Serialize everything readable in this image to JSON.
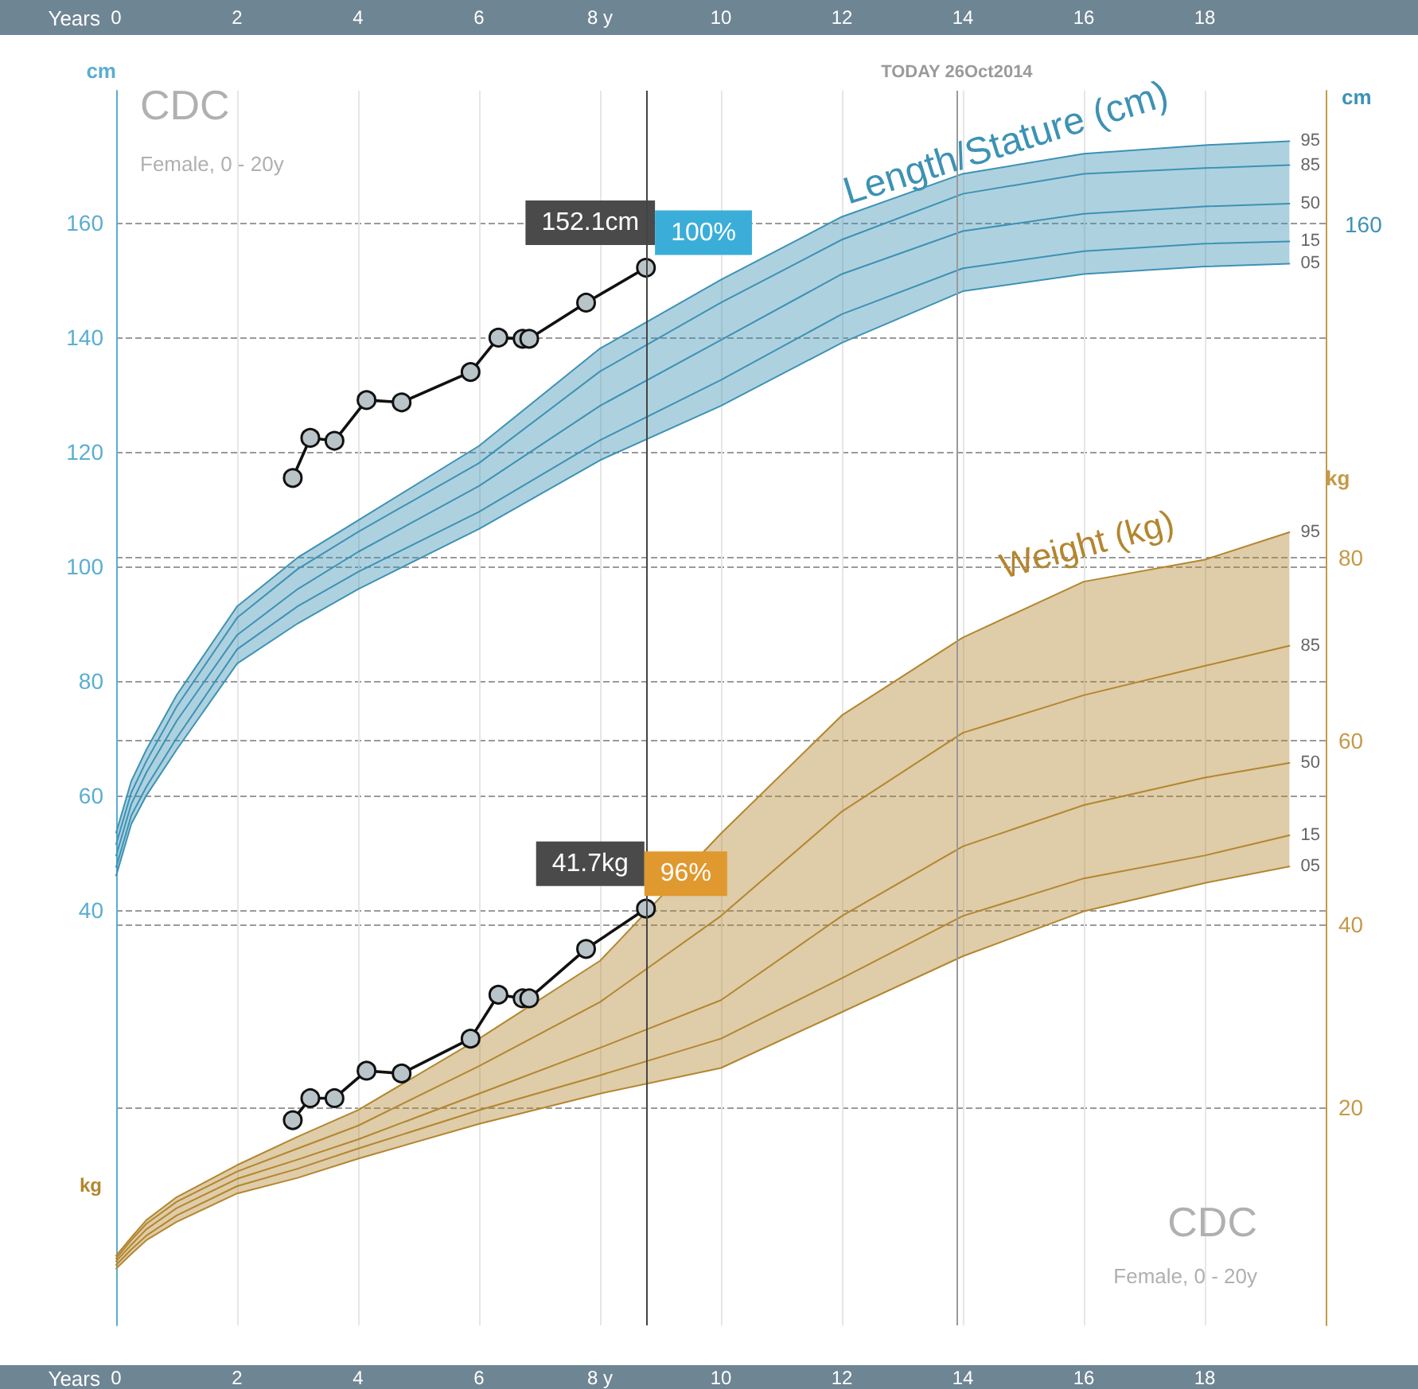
{
  "chart_data": {
    "type": "line",
    "xlabel": "Years",
    "x2label": "Years",
    "ylabel": "cm",
    "y2label": "kg",
    "xlim": [
      0,
      20
    ],
    "xticks": [
      0,
      2,
      4,
      6,
      {
        "value": 8,
        "label": "8 y"
      },
      10,
      12,
      14,
      16,
      18
    ],
    "x2lim": [
      0,
      20
    ],
    "x2ticks": [
      0,
      2,
      4,
      6,
      {
        "value": 8,
        "label": "8 y"
      },
      10,
      12,
      14,
      16,
      18
    ],
    "ylim": [
      -32.5,
      183
    ],
    "yticks": [
      40,
      60,
      80,
      100,
      120,
      140,
      160
    ],
    "y2lim": [
      -3.8,
      131
    ],
    "y2ticks": [
      20,
      40,
      60,
      80
    ],
    "grid": true,
    "line_style": "solid",
    "series": [
      {
        "name": "95",
        "color": "#3d92b4",
        "marker": "none",
        "x": [
          0,
          0.25,
          0.5,
          1,
          2,
          3,
          4,
          6,
          8,
          10,
          12,
          14,
          16,
          18,
          19.4
        ],
        "values": [
          53.5,
          62.5,
          68,
          77.5,
          93,
          101.5,
          108,
          121,
          138,
          150,
          161,
          168.5,
          172,
          173.5,
          174.2
        ]
      },
      {
        "name": "85",
        "color": "#3d92b4",
        "marker": "none",
        "x": [
          0,
          0.25,
          0.5,
          1,
          2,
          3,
          4,
          6,
          8,
          10,
          12,
          14,
          16,
          18,
          19.4
        ],
        "values": [
          51.5,
          60.5,
          66,
          75.5,
          91,
          99.5,
          106,
          118,
          134,
          146,
          157,
          165,
          168.5,
          169.5,
          170
        ]
      },
      {
        "name": "50",
        "color": "#3d92b4",
        "marker": "none",
        "x": [
          0,
          0.25,
          0.5,
          1,
          2,
          3,
          4,
          6,
          8,
          10,
          12,
          14,
          16,
          18,
          19.4
        ],
        "values": [
          49.5,
          58.5,
          64,
          73,
          88,
          96,
          102.5,
          114,
          128,
          139.5,
          151,
          158.5,
          161.5,
          162.8,
          163.3
        ],
        "lower": [
          46,
          55,
          60,
          68,
          83,
          90,
          96,
          106.5,
          118.5,
          128,
          139,
          148,
          151,
          152.3,
          152.8
        ],
        "upper": [
          53.5,
          62.5,
          68,
          77.5,
          93,
          101.5,
          108,
          121,
          138,
          150,
          161,
          168.5,
          172,
          173.5,
          174.2
        ]
      },
      {
        "name": "15",
        "color": "#3d92b4",
        "marker": "none",
        "x": [
          0,
          0.25,
          0.5,
          1,
          2,
          3,
          4,
          6,
          8,
          10,
          12,
          14,
          16,
          18,
          19.4
        ],
        "values": [
          47.5,
          56.5,
          61.5,
          70,
          85.5,
          93,
          99,
          109.5,
          122,
          132.5,
          144,
          152,
          155,
          156.3,
          156.7
        ]
      },
      {
        "name": "05",
        "color": "#3d92b4",
        "marker": "none",
        "x": [
          0,
          0.25,
          0.5,
          1,
          2,
          3,
          4,
          6,
          8,
          10,
          12,
          14,
          16,
          18,
          19.4
        ],
        "values": [
          46,
          55,
          60,
          68,
          83,
          90,
          96,
          106.5,
          118.5,
          128,
          139,
          148,
          151,
          152.3,
          152.8
        ]
      },
      {
        "name": "95",
        "color": "#b3862f",
        "marker": "none",
        "axis": "y2",
        "x": [
          0,
          0.25,
          0.5,
          1,
          2,
          3,
          4,
          6,
          8,
          10,
          12,
          14,
          16,
          18,
          19.4
        ],
        "values": [
          3.8,
          5.8,
          7.7,
          10.2,
          13.7,
          16.8,
          19.7,
          27.5,
          36,
          49.9,
          62.8,
          71.3,
          77.4,
          79.8,
          82.8
        ]
      },
      {
        "name": "85",
        "color": "#b3862f",
        "marker": "none",
        "axis": "y2",
        "x": [
          0,
          0.25,
          0.5,
          1,
          2,
          3,
          4,
          6,
          8,
          10,
          12,
          14,
          16,
          18,
          19.4
        ],
        "values": [
          3.5,
          5.5,
          7.3,
          9.7,
          13,
          15.5,
          18,
          24.5,
          31.5,
          40.9,
          52.3,
          60.9,
          65,
          68.2,
          70.4
        ]
      },
      {
        "name": "50",
        "color": "#b3862f",
        "marker": "none",
        "axis": "y2",
        "x": [
          0,
          0.25,
          0.5,
          1,
          2,
          3,
          4,
          6,
          8,
          10,
          12,
          14,
          16,
          18,
          19.4
        ],
        "values": [
          3.2,
          5,
          6.7,
          9,
          12.2,
          14.3,
          16.5,
          21.5,
          26.5,
          31.7,
          40.9,
          48.5,
          53,
          56,
          57.6
        ],
        "lower": [
          2.4,
          4,
          5.5,
          7.5,
          10.6,
          12.3,
          14.4,
          18.2,
          21.5,
          24.3,
          30.4,
          36.5,
          41.4,
          44.5,
          46.3
        ],
        "upper": [
          3.8,
          5.8,
          7.7,
          10.2,
          13.7,
          16.8,
          19.7,
          27.5,
          36,
          49.9,
          62.8,
          71.3,
          77.4,
          79.8,
          82.8
        ]
      },
      {
        "name": "15",
        "color": "#b3862f",
        "marker": "none",
        "axis": "y2",
        "x": [
          0,
          0.25,
          0.5,
          1,
          2,
          3,
          4,
          6,
          8,
          10,
          12,
          14,
          16,
          18,
          19.4
        ],
        "values": [
          2.8,
          4.5,
          6,
          8.2,
          11.4,
          13.3,
          15.5,
          19.7,
          23.5,
          27.5,
          34.1,
          40.9,
          45,
          47.5,
          49.7
        ]
      },
      {
        "name": "05",
        "color": "#b3862f",
        "marker": "none",
        "axis": "y2",
        "x": [
          0,
          0.25,
          0.5,
          1,
          2,
          3,
          4,
          6,
          8,
          10,
          12,
          14,
          16,
          18,
          19.4
        ],
        "values": [
          2.4,
          4,
          5.5,
          7.5,
          10.6,
          12.3,
          14.4,
          18.2,
          21.5,
          24.3,
          30.4,
          36.5,
          41.4,
          44.5,
          46.3
        ]
      },
      {
        "color": "#111111",
        "marker": "circle",
        "x": [
          2.92,
          3.21,
          3.61,
          4.14,
          4.72,
          5.86,
          6.32,
          6.72,
          6.83,
          7.77,
          8.76
        ],
        "values": [
          115.4,
          122.4,
          121.9,
          129,
          128.6,
          133.9,
          139.9,
          139.7,
          139.7,
          146,
          152.1
        ],
        "value_labels": [
          null,
          null,
          null,
          null,
          null,
          null,
          null,
          null,
          null,
          null,
          "152.1cm"
        ]
      },
      {
        "color": "#111111",
        "marker": "circle",
        "axis": "y2",
        "x": [
          2.92,
          3.21,
          3.61,
          4.14,
          4.72,
          5.86,
          6.32,
          6.72,
          6.83,
          7.77,
          8.76
        ],
        "values": [
          18.6,
          21,
          21,
          24,
          23.7,
          27.5,
          32.3,
          31.9,
          31.9,
          37.3,
          41.7
        ],
        "value_labels": [
          null,
          null,
          null,
          null,
          null,
          null,
          null,
          null,
          null,
          null,
          "41.7kg"
        ]
      }
    ],
    "ref_lines": [
      {
        "axis": "x",
        "value": 13.9,
        "label": "TODAY 26Oct2014",
        "color": "#9a9a9a"
      },
      {
        "axis": "x",
        "value": 8.76,
        "color": "#444444"
      }
    ],
    "annotations": [
      "CDC",
      "Female, 0 - 20y",
      "Length/Stature (cm)",
      "Weight (kg)",
      "CDC",
      "Female, 0 - 20y",
      "kg",
      "cm",
      "160",
      "100%",
      "96%"
    ]
  }
}
